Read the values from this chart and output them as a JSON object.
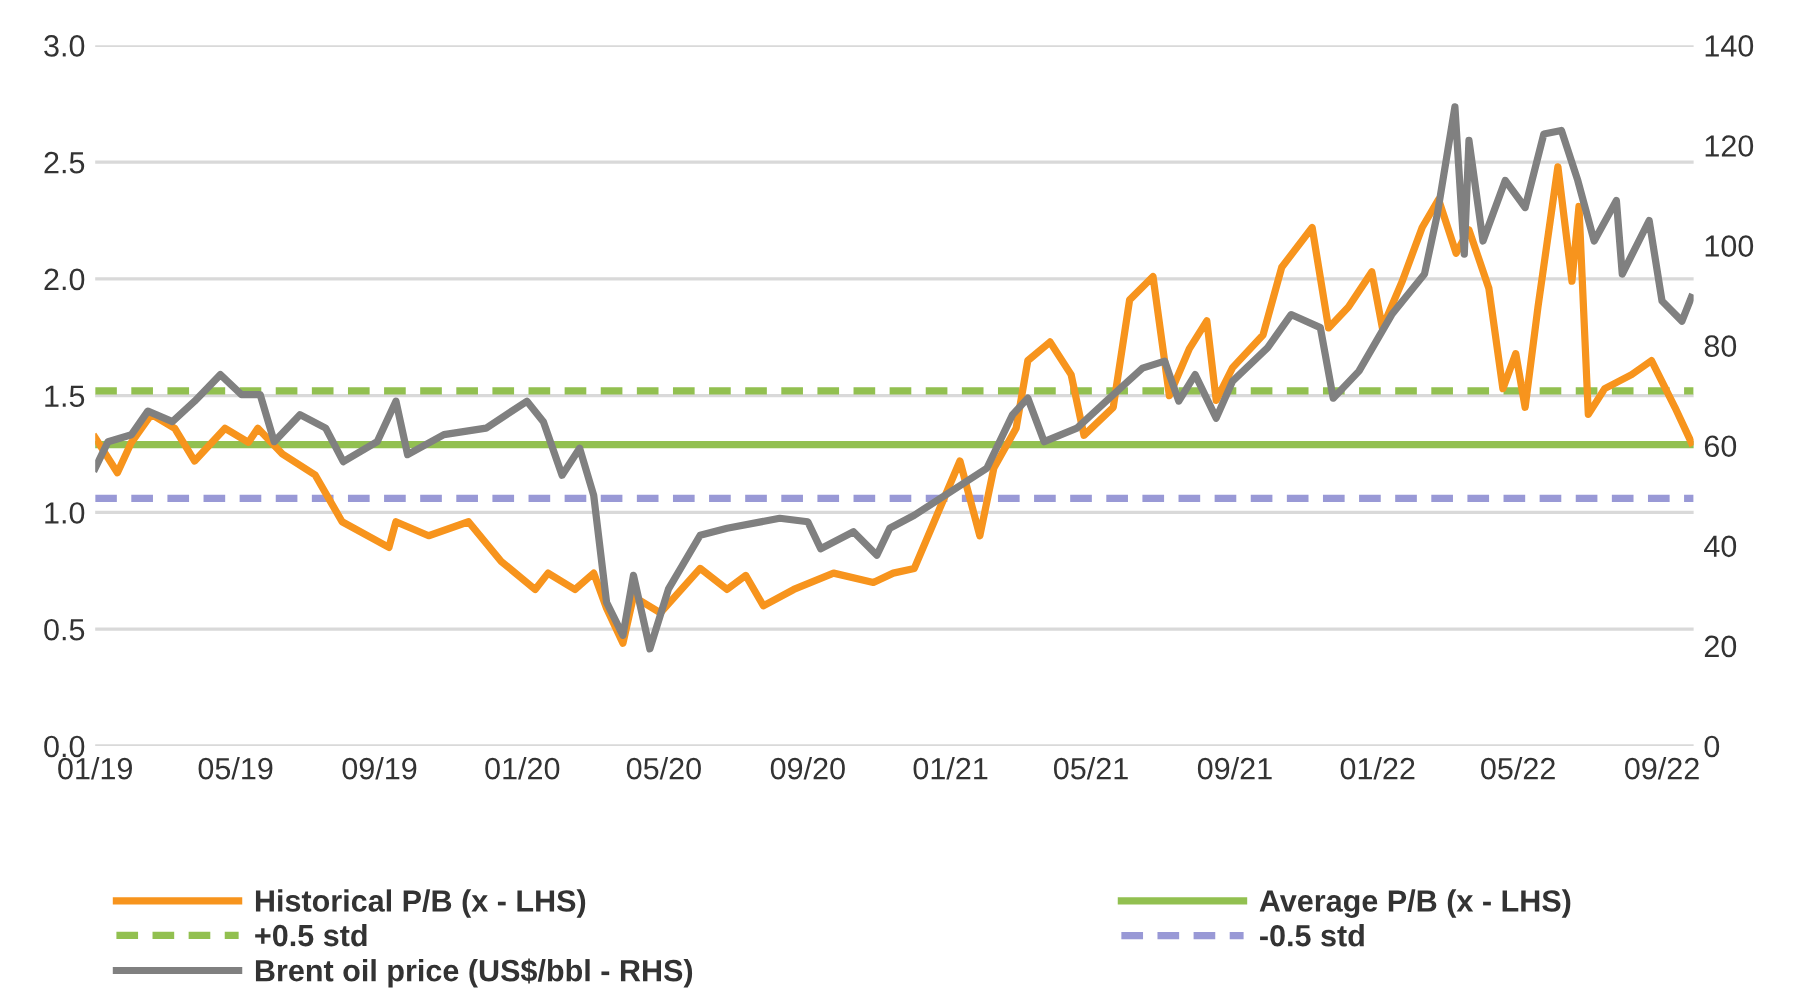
{
  "chart_data": {
    "type": "line",
    "xlim": [
      "2019-01-01",
      "2022-09-28"
    ],
    "xticks": [
      {
        "value": "2019-01-01",
        "label": "01/19"
      },
      {
        "value": "2019-05-01",
        "label": "05/19"
      },
      {
        "value": "2019-09-01",
        "label": "09/19"
      },
      {
        "value": "2020-01-01",
        "label": "01/20"
      },
      {
        "value": "2020-05-01",
        "label": "05/20"
      },
      {
        "value": "2020-09-01",
        "label": "09/20"
      },
      {
        "value": "2021-01-01",
        "label": "01/21"
      },
      {
        "value": "2021-05-01",
        "label": "05/21"
      },
      {
        "value": "2021-09-01",
        "label": "09/21"
      },
      {
        "value": "2022-01-01",
        "label": "01/22"
      },
      {
        "value": "2022-05-01",
        "label": "05/22"
      },
      {
        "value": "2022-09-01",
        "label": "09/22"
      }
    ],
    "ylim": [
      0,
      3
    ],
    "yticks": [
      {
        "value": 0,
        "label": "0.0"
      },
      {
        "value": 0.5,
        "label": "0.5"
      },
      {
        "value": 1,
        "label": "1.0"
      },
      {
        "value": 1.5,
        "label": "1.5"
      },
      {
        "value": 2,
        "label": "2.0"
      },
      {
        "value": 2.5,
        "label": "2.5"
      },
      {
        "value": 3,
        "label": "3.0"
      }
    ],
    "y2lim": [
      0,
      140
    ],
    "y2ticks": [
      0,
      20,
      40,
      60,
      80,
      100,
      120,
      140
    ],
    "grid": "y",
    "legend": "bottom",
    "line_style": "solid",
    "marker": "none",
    "series": [
      {
        "name": "Historical P/B (x - LHS)",
        "color": "#f7941d",
        "x": [
          "2019-01-01",
          "2019-01-20",
          "2019-02-01",
          "2019-02-18",
          "2019-03-10",
          "2019-03-27",
          "2019-04-22",
          "2019-05-12",
          "2019-05-20",
          "2019-06-10",
          "2019-07-08",
          "2019-07-31",
          "2019-09-09",
          "2019-09-15",
          "2019-10-13",
          "2019-11-16",
          "2019-12-14",
          "2020-01-12",
          "2020-01-23",
          "2020-02-15",
          "2020-03-02",
          "2020-03-13",
          "2020-03-27",
          "2020-04-05",
          "2020-04-28",
          "2020-06-01",
          "2020-06-24",
          "2020-07-10",
          "2020-07-25",
          "2020-08-20",
          "2020-09-23",
          "2020-10-27",
          "2020-11-13",
          "2020-12-01",
          "2020-12-23",
          "2021-01-09",
          "2021-01-26",
          "2021-02-07",
          "2021-02-26",
          "2021-03-08",
          "2021-03-27",
          "2021-04-14",
          "2021-04-25",
          "2021-05-20",
          "2021-06-03",
          "2021-06-23",
          "2021-07-07",
          "2021-07-24",
          "2021-08-08",
          "2021-08-16",
          "2021-08-30",
          "2021-09-25",
          "2021-10-11",
          "2021-11-06",
          "2021-11-20",
          "2021-12-07",
          "2021-12-27",
          "2022-01-05",
          "2022-01-22",
          "2022-02-08",
          "2022-02-22",
          "2022-03-09",
          "2022-03-20",
          "2022-04-06",
          "2022-04-18",
          "2022-04-29",
          "2022-05-07",
          "2022-05-18",
          "2022-06-04",
          "2022-06-16",
          "2022-06-22",
          "2022-06-30",
          "2022-07-14",
          "2022-08-06",
          "2022-08-23",
          "2022-09-12",
          "2022-09-26"
        ],
        "values": [
          1.32,
          1.17,
          1.3,
          1.42,
          1.36,
          1.22,
          1.36,
          1.3,
          1.36,
          1.25,
          1.16,
          0.96,
          0.85,
          0.96,
          0.9,
          0.96,
          0.79,
          0.67,
          0.74,
          0.67,
          0.74,
          0.59,
          0.44,
          0.64,
          0.57,
          0.76,
          0.67,
          0.73,
          0.6,
          0.67,
          0.74,
          0.7,
          0.74,
          0.76,
          1.02,
          1.22,
          0.9,
          1.19,
          1.36,
          1.65,
          1.73,
          1.59,
          1.33,
          1.45,
          1.91,
          2.01,
          1.5,
          1.7,
          1.82,
          1.48,
          1.62,
          1.76,
          2.05,
          2.22,
          1.79,
          1.88,
          2.03,
          1.79,
          1.99,
          2.22,
          2.34,
          2.11,
          2.21,
          1.96,
          1.53,
          1.68,
          1.45,
          1.88,
          2.48,
          1.99,
          2.31,
          1.42,
          1.53,
          1.59,
          1.65,
          1.45,
          1.3
        ]
      },
      {
        "name": "Brent oil price (US$/bbl - RHS)",
        "color": "#808080",
        "axis": "y2",
        "x": [
          "2019-01-01",
          "2019-01-12",
          "2019-02-01",
          "2019-02-15",
          "2019-03-08",
          "2019-03-27",
          "2019-04-18",
          "2019-05-06",
          "2019-05-22",
          "2019-06-03",
          "2019-06-25",
          "2019-07-17",
          "2019-08-01",
          "2019-08-30",
          "2019-09-15",
          "2019-09-25",
          "2019-10-26",
          "2019-12-01",
          "2020-01-05",
          "2020-01-19",
          "2020-02-04",
          "2020-02-19",
          "2020-03-02",
          "2020-03-13",
          "2020-03-27",
          "2020-04-05",
          "2020-04-19",
          "2020-05-05",
          "2020-06-01",
          "2020-06-24",
          "2020-08-08",
          "2020-09-01",
          "2020-09-12",
          "2020-10-10",
          "2020-10-30",
          "2020-11-10",
          "2020-12-01",
          "2021-01-01",
          "2021-02-01",
          "2021-02-23",
          "2021-03-08",
          "2021-03-22",
          "2021-04-19",
          "2021-05-14",
          "2021-06-14",
          "2021-07-03",
          "2021-07-15",
          "2021-07-29",
          "2021-08-16",
          "2021-08-30",
          "2021-09-29",
          "2021-10-19",
          "2021-11-13",
          "2021-11-24",
          "2021-12-16",
          "2022-01-13",
          "2022-02-10",
          "2022-02-21",
          "2022-03-08",
          "2022-03-16",
          "2022-03-20",
          "2022-04-01",
          "2022-04-20",
          "2022-05-07",
          "2022-05-23",
          "2022-06-07",
          "2022-06-21",
          "2022-07-05",
          "2022-07-24",
          "2022-07-29",
          "2022-08-21",
          "2022-09-01",
          "2022-09-18",
          "2022-09-26"
        ],
        "values": [
          55.5,
          60.8,
          62.2,
          66.9,
          64.8,
          68.9,
          74.2,
          70.2,
          70.2,
          60.8,
          66.2,
          63.5,
          56.8,
          60.8,
          68.9,
          58.2,
          62.2,
          63.5,
          68.9,
          64.8,
          54.1,
          59.5,
          50.1,
          28.7,
          22.1,
          34.1,
          19.4,
          31.4,
          42.1,
          43.5,
          45.5,
          44.8,
          39.4,
          42.8,
          38.1,
          43.5,
          46.1,
          50.8,
          55.5,
          66.2,
          69.5,
          60.8,
          63.5,
          68.9,
          75.5,
          76.9,
          68.9,
          74.2,
          65.5,
          72.9,
          79.6,
          86.2,
          83.6,
          69.5,
          74.9,
          86.2,
          94.3,
          106.3,
          127.7,
          98.3,
          121.0,
          100.9,
          113.0,
          107.6,
          122.3,
          123.0,
          113.0,
          100.9,
          109.0,
          94.3,
          105.0,
          88.9,
          84.9,
          89.6
        ]
      }
    ],
    "ref_lines": [
      {
        "axis": "y",
        "value": 1.29,
        "label": "Average P/B (x - LHS)",
        "color": "#92c050",
        "line_style": "solid"
      },
      {
        "axis": "y",
        "value": 1.52,
        "label": "+0.5 std",
        "color": "#92c050",
        "line_style": "dashed"
      },
      {
        "axis": "y",
        "value": 1.06,
        "label": "-0.5 std",
        "color": "#9999d6",
        "line_style": "dashed"
      }
    ]
  }
}
